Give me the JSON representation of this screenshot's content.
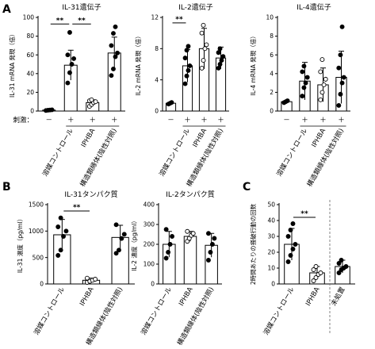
{
  "panel_letters": [
    "A",
    "B",
    "C"
  ],
  "stim_row": {
    "label": "刺激：",
    "marks": [
      "－",
      "＋",
      "＋",
      "＋"
    ]
  },
  "chart_data": [
    {
      "id": "a1",
      "type": "bar",
      "title": "IL-31遺伝子",
      "ylabel": "IL-31 mRNA 発現（倍）",
      "ylim": [
        0,
        100
      ],
      "yticks": [
        0,
        20,
        40,
        60,
        80,
        100
      ],
      "categories": [
        "",
        "",
        "",
        ""
      ],
      "values": [
        1,
        49,
        9,
        62
      ],
      "err": [
        0.5,
        16,
        3,
        17
      ],
      "fills": [
        "#ffffff",
        "#ffffff",
        "#ffffff",
        "#ffffff"
      ],
      "points": [
        {
          "v": [
            0.6,
            0.9,
            1.1,
            1.3
          ],
          "style": "filled"
        },
        {
          "v": [
            30,
            41,
            50,
            56,
            60,
            84
          ],
          "style": "filled"
        },
        {
          "v": [
            5,
            7,
            9,
            10,
            11,
            12
          ],
          "style": "open"
        },
        {
          "v": [
            38,
            45,
            58,
            62,
            70,
            83,
            90
          ],
          "style": "filled"
        }
      ],
      "sig": [
        {
          "from": 0,
          "to": 1,
          "label": "**",
          "y": 93
        },
        {
          "from": 1,
          "to": 2,
          "label": "**",
          "y": 93
        }
      ]
    },
    {
      "id": "a2",
      "type": "bar",
      "title": "IL-2遺伝子",
      "ylabel": "IL-2 mRNA 発現（倍）",
      "ylim": [
        0,
        12
      ],
      "yticks": [
        0,
        4,
        8,
        12
      ],
      "categories": [
        "",
        "",
        "",
        ""
      ],
      "values": [
        1,
        5.8,
        8,
        6.8
      ],
      "err": [
        0.1,
        2.1,
        2.6,
        1.4
      ],
      "fills": [
        "#ffffff",
        "#ffffff",
        "#ffffff",
        "#ffffff"
      ],
      "points": [
        {
          "v": [
            0.9,
            1.0,
            1.1
          ],
          "style": "filled"
        },
        {
          "v": [
            3.5,
            4.5,
            5.2,
            5.8,
            6.8,
            7.8,
            8.3
          ],
          "style": "filled"
        },
        {
          "v": [
            5.5,
            6.5,
            8.0,
            8.5,
            10.0,
            11.0
          ],
          "style": "open"
        },
        {
          "v": [
            5.5,
            6.0,
            6.5,
            7.0,
            7.5,
            8.0
          ],
          "style": "filled"
        }
      ],
      "sig": [
        {
          "from": 0,
          "to": 1,
          "label": "**",
          "y": 11.3
        }
      ]
    },
    {
      "id": "a3",
      "type": "bar",
      "title": "IL-4遺伝子",
      "ylabel": "IL-4 mRNA 発現（倍）",
      "ylim": [
        0,
        10
      ],
      "yticks": [
        0,
        2,
        4,
        6,
        8,
        10
      ],
      "categories": [
        "",
        "",
        "",
        ""
      ],
      "values": [
        1,
        3.2,
        2.8,
        3.6
      ],
      "err": [
        0.1,
        2.0,
        1.8,
        2.8
      ],
      "fills": [
        "#ffffff",
        "#ffffff",
        "#ffffff",
        "#ffffff"
      ],
      "points": [
        {
          "v": [
            0.9,
            1.0,
            1.1
          ],
          "style": "filled"
        },
        {
          "v": [
            1.6,
            2.5,
            3.0,
            3.6,
            4.2,
            4.8
          ],
          "style": "filled"
        },
        {
          "v": [
            1.2,
            2.0,
            2.8,
            3.4,
            4.2,
            5.5
          ],
          "style": "open"
        },
        {
          "v": [
            0.6,
            1.8,
            3.0,
            3.6,
            4.6,
            6.0,
            9.0
          ],
          "style": "filled"
        }
      ],
      "sig": []
    },
    {
      "id": "b1",
      "type": "bar",
      "title": "IL-31タンパク質",
      "ylabel": "IL-31 濃度（pg/ml）",
      "ylim": [
        0,
        1500
      ],
      "yticks": [
        0,
        500,
        1000,
        1500
      ],
      "categories": [
        "溶媒コントロール",
        "IPHBA",
        "構造類縁体(陰性対照)"
      ],
      "values": [
        930,
        70,
        880
      ],
      "err": [
        290,
        40,
        230
      ],
      "fills": [
        "#ffffff",
        "#ffffff",
        "#ffffff"
      ],
      "points": [
        {
          "v": [
            540,
            640,
            900,
            1000,
            1080,
            1250
          ],
          "style": "filled"
        },
        {
          "v": [
            30,
            50,
            70,
            90,
            110
          ],
          "style": "open"
        },
        {
          "v": [
            580,
            640,
            860,
            940,
            1120
          ],
          "style": "filled"
        }
      ],
      "sig": [
        {
          "from": 0,
          "to": 1,
          "label": "**",
          "y": 1380
        }
      ]
    },
    {
      "id": "b2",
      "type": "bar",
      "title": "IL-2タンパク質",
      "ylabel": "IL-2 濃度（pg/ml）",
      "ylim": [
        0,
        400
      ],
      "yticks": [
        0,
        100,
        200,
        300,
        400
      ],
      "categories": [
        "溶媒コントロール",
        "IPHBA",
        "構造類縁体(陰性対照)"
      ],
      "values": [
        200,
        240,
        195
      ],
      "err": [
        65,
        25,
        60
      ],
      "fills": [
        "#ffffff",
        "#ffffff",
        "#ffffff"
      ],
      "points": [
        {
          "v": [
            130,
            160,
            200,
            240,
            275
          ],
          "style": "filled"
        },
        {
          "v": [
            215,
            230,
            245,
            255,
            265
          ],
          "style": "open"
        },
        {
          "v": [
            120,
            160,
            200,
            230,
            255
          ],
          "style": "filled"
        }
      ],
      "sig": []
    },
    {
      "id": "c1",
      "type": "bar",
      "title": "",
      "ylabel": "2時間あたりの掻破行動の回数",
      "ylim": [
        0,
        50
      ],
      "yticks": [
        0,
        10,
        20,
        30,
        40,
        50
      ],
      "categories": [
        "溶媒コントロール",
        "IPHBA",
        "未処置"
      ],
      "values": [
        25,
        7,
        11
      ],
      "err": [
        10,
        4,
        4
      ],
      "fills": [
        "#ffffff",
        "#ffffff",
        "#ffffff"
      ],
      "points": [
        {
          "v": [
            14,
            18,
            22,
            25,
            30,
            34,
            38
          ],
          "style": "filled"
        },
        {
          "v": [
            2,
            4,
            6,
            7,
            9,
            11
          ],
          "style": "open"
        },
        {
          "v": [
            7,
            9,
            10,
            11,
            13,
            15
          ],
          "style": "filled"
        }
      ],
      "sig": [
        {
          "from": 0,
          "to": 1,
          "label": "**",
          "y": 42
        }
      ],
      "separator_after": 1
    }
  ],
  "panel_a_categories": [
    "溶媒コントロール",
    "IPHBA",
    "構造類縁体(陰性対照)"
  ]
}
